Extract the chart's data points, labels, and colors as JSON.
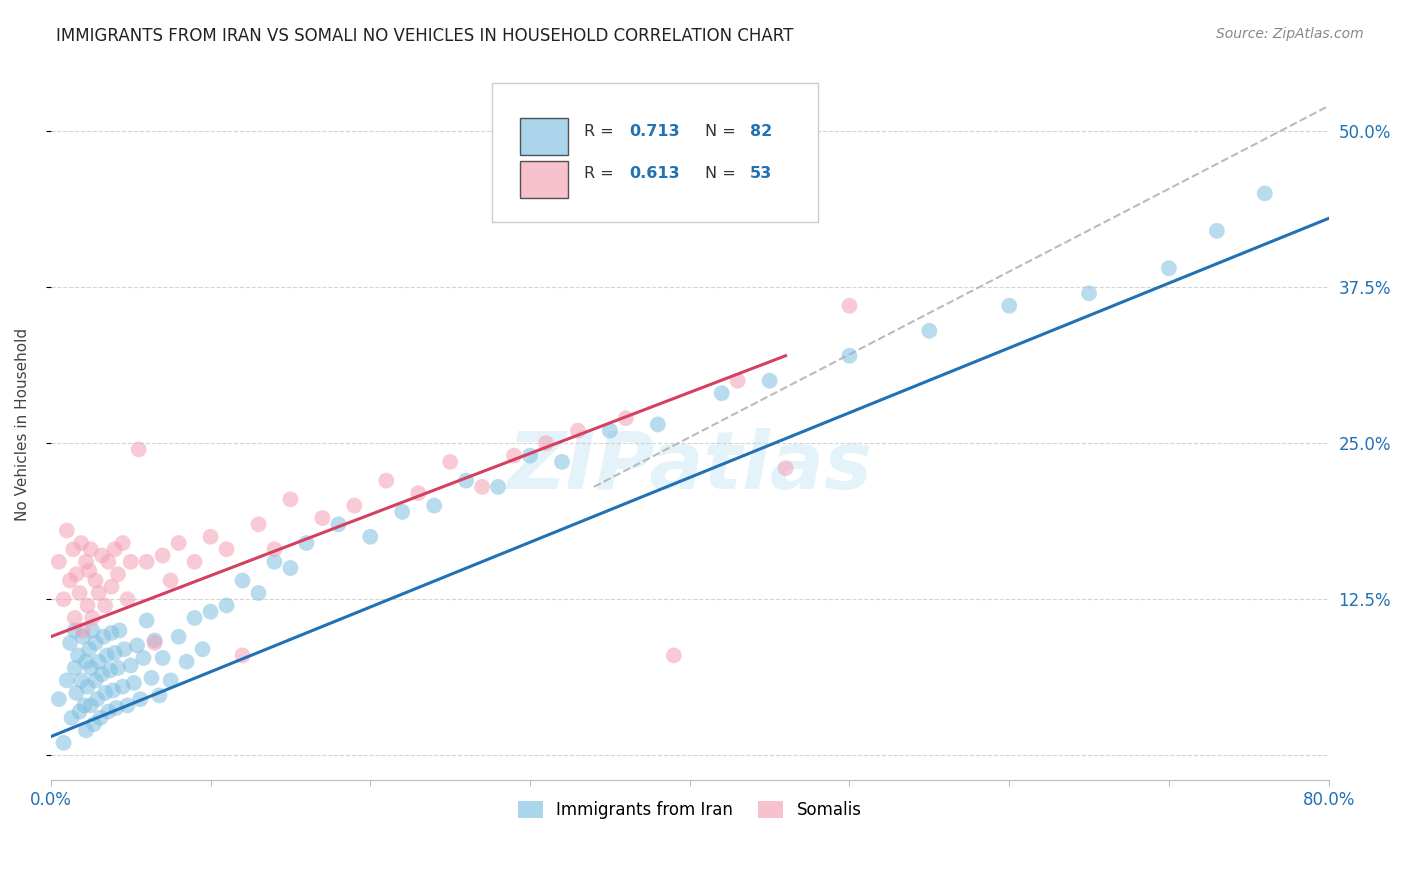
{
  "title": "IMMIGRANTS FROM IRAN VS SOMALI NO VEHICLES IN HOUSEHOLD CORRELATION CHART",
  "source": "Source: ZipAtlas.com",
  "ylabel": "No Vehicles in Household",
  "xlim": [
    0.0,
    0.8
  ],
  "ylim": [
    -0.02,
    0.55
  ],
  "x_ticks": [
    0.0,
    0.1,
    0.2,
    0.3,
    0.4,
    0.5,
    0.6,
    0.7,
    0.8
  ],
  "y_ticks": [
    0.0,
    0.125,
    0.25,
    0.375,
    0.5
  ],
  "y_tick_labels": [
    "",
    "12.5%",
    "25.0%",
    "37.5%",
    "50.0%"
  ],
  "blue_color": "#7fbfdf",
  "pink_color": "#f4a0b5",
  "blue_line_color": "#2171b5",
  "pink_line_color": "#d44060",
  "watermark": "ZIPatlas",
  "legend_label_blue": "Immigrants from Iran",
  "legend_label_pink": "Somalis",
  "legend_R_blue": "0.713",
  "legend_N_blue": "82",
  "legend_R_pink": "0.613",
  "legend_N_pink": "53",
  "blue_scatter_x": [
    0.005,
    0.008,
    0.01,
    0.012,
    0.013,
    0.015,
    0.015,
    0.016,
    0.017,
    0.018,
    0.019,
    0.02,
    0.021,
    0.022,
    0.022,
    0.023,
    0.024,
    0.025,
    0.025,
    0.026,
    0.027,
    0.028,
    0.028,
    0.029,
    0.03,
    0.031,
    0.032,
    0.033,
    0.034,
    0.035,
    0.036,
    0.037,
    0.038,
    0.039,
    0.04,
    0.041,
    0.042,
    0.043,
    0.045,
    0.046,
    0.048,
    0.05,
    0.052,
    0.054,
    0.056,
    0.058,
    0.06,
    0.063,
    0.065,
    0.068,
    0.07,
    0.075,
    0.08,
    0.085,
    0.09,
    0.095,
    0.1,
    0.11,
    0.12,
    0.13,
    0.14,
    0.15,
    0.16,
    0.18,
    0.2,
    0.22,
    0.24,
    0.26,
    0.28,
    0.3,
    0.32,
    0.35,
    0.38,
    0.42,
    0.45,
    0.5,
    0.55,
    0.6,
    0.65,
    0.7,
    0.73,
    0.76
  ],
  "blue_scatter_y": [
    0.045,
    0.01,
    0.06,
    0.09,
    0.03,
    0.07,
    0.1,
    0.05,
    0.08,
    0.035,
    0.06,
    0.095,
    0.04,
    0.075,
    0.02,
    0.055,
    0.085,
    0.04,
    0.07,
    0.1,
    0.025,
    0.06,
    0.09,
    0.045,
    0.075,
    0.03,
    0.065,
    0.095,
    0.05,
    0.08,
    0.035,
    0.068,
    0.098,
    0.052,
    0.082,
    0.038,
    0.07,
    0.1,
    0.055,
    0.085,
    0.04,
    0.072,
    0.058,
    0.088,
    0.045,
    0.078,
    0.108,
    0.062,
    0.092,
    0.048,
    0.078,
    0.06,
    0.095,
    0.075,
    0.11,
    0.085,
    0.115,
    0.12,
    0.14,
    0.13,
    0.155,
    0.15,
    0.17,
    0.185,
    0.175,
    0.195,
    0.2,
    0.22,
    0.215,
    0.24,
    0.235,
    0.26,
    0.265,
    0.29,
    0.3,
    0.32,
    0.34,
    0.36,
    0.37,
    0.39,
    0.42,
    0.45
  ],
  "pink_scatter_x": [
    0.005,
    0.008,
    0.01,
    0.012,
    0.014,
    0.015,
    0.016,
    0.018,
    0.019,
    0.02,
    0.022,
    0.023,
    0.024,
    0.025,
    0.026,
    0.028,
    0.03,
    0.032,
    0.034,
    0.036,
    0.038,
    0.04,
    0.042,
    0.045,
    0.048,
    0.05,
    0.055,
    0.06,
    0.065,
    0.07,
    0.075,
    0.08,
    0.09,
    0.1,
    0.11,
    0.12,
    0.13,
    0.14,
    0.15,
    0.17,
    0.19,
    0.21,
    0.23,
    0.25,
    0.27,
    0.29,
    0.31,
    0.33,
    0.36,
    0.39,
    0.43,
    0.46,
    0.5
  ],
  "pink_scatter_y": [
    0.155,
    0.125,
    0.18,
    0.14,
    0.165,
    0.11,
    0.145,
    0.13,
    0.17,
    0.1,
    0.155,
    0.12,
    0.148,
    0.165,
    0.11,
    0.14,
    0.13,
    0.16,
    0.12,
    0.155,
    0.135,
    0.165,
    0.145,
    0.17,
    0.125,
    0.155,
    0.245,
    0.155,
    0.09,
    0.16,
    0.14,
    0.17,
    0.155,
    0.175,
    0.165,
    0.08,
    0.185,
    0.165,
    0.205,
    0.19,
    0.2,
    0.22,
    0.21,
    0.235,
    0.215,
    0.24,
    0.25,
    0.26,
    0.27,
    0.08,
    0.3,
    0.23,
    0.36
  ],
  "blue_line_x": [
    0.0,
    0.8
  ],
  "blue_line_y": [
    0.015,
    0.43
  ],
  "pink_line_x": [
    0.0,
    0.46
  ],
  "pink_line_y": [
    0.095,
    0.32
  ],
  "dashed_line_x": [
    0.34,
    0.8
  ],
  "dashed_line_y": [
    0.215,
    0.52
  ],
  "grid_color": "#d0d0d0",
  "background_color": "#ffffff",
  "title_fontsize": 12,
  "blue_label_color": "#2171b5",
  "tick_color": "#2171b5"
}
